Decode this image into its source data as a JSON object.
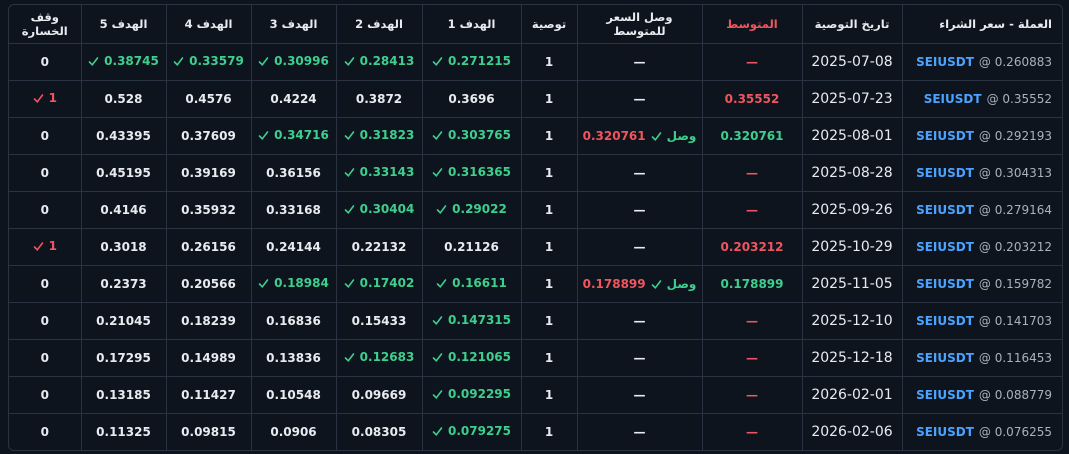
{
  "table": {
    "headers": [
      "العملة - سعر الشراء",
      "تاريخ التوصية",
      "المتوسط",
      "وصل السعر للمتوسط",
      "توصية",
      "الهدف 1",
      "الهدف 2",
      "الهدف 3",
      "الهدف 4",
      "الهدف 5",
      "وقف الخسارة"
    ],
    "rows": [
      {
        "coin": {
          "symbol": "SEIUSDT",
          "price": "@ 0.260883"
        },
        "date": "2025-07-08",
        "avg": {
          "text": "—",
          "reached": false
        },
        "reached": {
          "text": "—"
        },
        "rec": "1",
        "targets": [
          {
            "text": "0.271215",
            "hit": true
          },
          {
            "text": "0.28413",
            "hit": true
          },
          {
            "text": "0.30996",
            "hit": true
          },
          {
            "text": "0.33579",
            "hit": true
          },
          {
            "text": "0.38745",
            "hit": true
          }
        ],
        "stop": {
          "text": "0",
          "hit": false
        }
      },
      {
        "coin": {
          "symbol": "SEIUSDT",
          "price": "@ 0.35552"
        },
        "date": "2025-07-23",
        "avg": {
          "text": "0.35552",
          "reached": false
        },
        "reached": {
          "text": "—"
        },
        "rec": "1",
        "targets": [
          {
            "text": "0.3696",
            "hit": false
          },
          {
            "text": "0.3872",
            "hit": false
          },
          {
            "text": "0.4224",
            "hit": false
          },
          {
            "text": "0.4576",
            "hit": false
          },
          {
            "text": "0.528",
            "hit": false
          }
        ],
        "stop": {
          "text": "1",
          "hit": true
        }
      },
      {
        "coin": {
          "symbol": "SEIUSDT",
          "price": "@ 0.292193"
        },
        "date": "2025-08-01",
        "avg": {
          "text": "0.320761",
          "reached": true
        },
        "reached": {
          "label": "وصل",
          "price": "0.320761"
        },
        "rec": "1",
        "targets": [
          {
            "text": "0.303765",
            "hit": true
          },
          {
            "text": "0.31823",
            "hit": true
          },
          {
            "text": "0.34716",
            "hit": true
          },
          {
            "text": "0.37609",
            "hit": false
          },
          {
            "text": "0.43395",
            "hit": false
          }
        ],
        "stop": {
          "text": "0",
          "hit": false
        }
      },
      {
        "coin": {
          "symbol": "SEIUSDT",
          "price": "@ 0.304313"
        },
        "date": "2025-08-28",
        "avg": {
          "text": "—",
          "reached": false
        },
        "reached": {
          "text": "—"
        },
        "rec": "1",
        "targets": [
          {
            "text": "0.316365",
            "hit": true
          },
          {
            "text": "0.33143",
            "hit": true
          },
          {
            "text": "0.36156",
            "hit": false
          },
          {
            "text": "0.39169",
            "hit": false
          },
          {
            "text": "0.45195",
            "hit": false
          }
        ],
        "stop": {
          "text": "0",
          "hit": false
        }
      },
      {
        "coin": {
          "symbol": "SEIUSDT",
          "price": "@ 0.279164"
        },
        "date": "2025-09-26",
        "avg": {
          "text": "—",
          "reached": false
        },
        "reached": {
          "text": "—"
        },
        "rec": "1",
        "targets": [
          {
            "text": "0.29022",
            "hit": true
          },
          {
            "text": "0.30404",
            "hit": true
          },
          {
            "text": "0.33168",
            "hit": false
          },
          {
            "text": "0.35932",
            "hit": false
          },
          {
            "text": "0.4146",
            "hit": false
          }
        ],
        "stop": {
          "text": "0",
          "hit": false
        }
      },
      {
        "coin": {
          "symbol": "SEIUSDT",
          "price": "@ 0.203212"
        },
        "date": "2025-10-29",
        "avg": {
          "text": "0.203212",
          "reached": false
        },
        "reached": {
          "text": "—"
        },
        "rec": "1",
        "targets": [
          {
            "text": "0.21126",
            "hit": false
          },
          {
            "text": "0.22132",
            "hit": false
          },
          {
            "text": "0.24144",
            "hit": false
          },
          {
            "text": "0.26156",
            "hit": false
          },
          {
            "text": "0.3018",
            "hit": false
          }
        ],
        "stop": {
          "text": "1",
          "hit": true
        }
      },
      {
        "coin": {
          "symbol": "SEIUSDT",
          "price": "@ 0.159782"
        },
        "date": "2025-11-05",
        "avg": {
          "text": "0.178899",
          "reached": true
        },
        "reached": {
          "label": "وصل",
          "price": "0.178899"
        },
        "rec": "1",
        "targets": [
          {
            "text": "0.16611",
            "hit": true
          },
          {
            "text": "0.17402",
            "hit": true
          },
          {
            "text": "0.18984",
            "hit": true
          },
          {
            "text": "0.20566",
            "hit": false
          },
          {
            "text": "0.2373",
            "hit": false
          }
        ],
        "stop": {
          "text": "0",
          "hit": false
        }
      },
      {
        "coin": {
          "symbol": "SEIUSDT",
          "price": "@ 0.141703"
        },
        "date": "2025-12-10",
        "avg": {
          "text": "—",
          "reached": false
        },
        "reached": {
          "text": "—"
        },
        "rec": "1",
        "targets": [
          {
            "text": "0.147315",
            "hit": true
          },
          {
            "text": "0.15433",
            "hit": false
          },
          {
            "text": "0.16836",
            "hit": false
          },
          {
            "text": "0.18239",
            "hit": false
          },
          {
            "text": "0.21045",
            "hit": false
          }
        ],
        "stop": {
          "text": "0",
          "hit": false
        }
      },
      {
        "coin": {
          "symbol": "SEIUSDT",
          "price": "@ 0.116453"
        },
        "date": "2025-12-18",
        "avg": {
          "text": "—",
          "reached": false
        },
        "reached": {
          "text": "—"
        },
        "rec": "1",
        "targets": [
          {
            "text": "0.121065",
            "hit": true
          },
          {
            "text": "0.12683",
            "hit": true
          },
          {
            "text": "0.13836",
            "hit": false
          },
          {
            "text": "0.14989",
            "hit": false
          },
          {
            "text": "0.17295",
            "hit": false
          }
        ],
        "stop": {
          "text": "0",
          "hit": false
        }
      },
      {
        "coin": {
          "symbol": "SEIUSDT",
          "price": "@ 0.088779"
        },
        "date": "2026-02-01",
        "avg": {
          "text": "—",
          "reached": false
        },
        "reached": {
          "text": "—"
        },
        "rec": "1",
        "targets": [
          {
            "text": "0.092295",
            "hit": true
          },
          {
            "text": "0.09669",
            "hit": false
          },
          {
            "text": "0.10548",
            "hit": false
          },
          {
            "text": "0.11427",
            "hit": false
          },
          {
            "text": "0.13185",
            "hit": false
          }
        ],
        "stop": {
          "text": "0",
          "hit": false
        }
      },
      {
        "coin": {
          "symbol": "SEIUSDT",
          "price": "@ 0.076255"
        },
        "date": "2026-02-06",
        "avg": {
          "text": "—",
          "reached": false
        },
        "reached": {
          "text": "—"
        },
        "rec": "1",
        "targets": [
          {
            "text": "0.079275",
            "hit": true
          },
          {
            "text": "0.08305",
            "hit": false
          },
          {
            "text": "0.0906",
            "hit": false
          },
          {
            "text": "0.09815",
            "hit": false
          },
          {
            "text": "0.11325",
            "hit": false
          }
        ],
        "stop": {
          "text": "0",
          "hit": false
        }
      }
    ]
  }
}
